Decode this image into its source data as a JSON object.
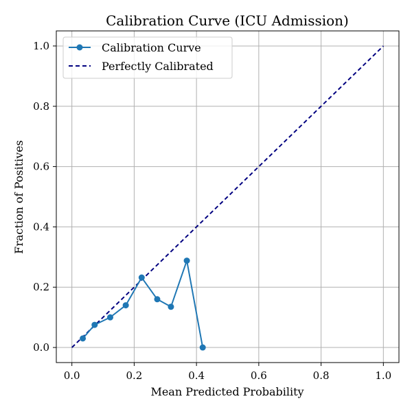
{
  "chart_data": {
    "type": "line",
    "title": "Calibration Curve (ICU Admission)",
    "xlabel": "Mean Predicted Probability",
    "ylabel": "Fraction of Positives",
    "xlim": [
      -0.05,
      1.05
    ],
    "ylim": [
      -0.05,
      1.05
    ],
    "xticks": [
      0.0,
      0.2,
      0.4,
      0.6,
      0.8,
      1.0
    ],
    "yticks": [
      0.0,
      0.2,
      0.4,
      0.6,
      0.8,
      1.0
    ],
    "grid": true,
    "legend_position": "top-left",
    "series": [
      {
        "name": "Calibration Curve",
        "style": "solid-with-markers",
        "color": "#1f77b4",
        "x": [
          0.035,
          0.073,
          0.123,
          0.173,
          0.224,
          0.274,
          0.318,
          0.369,
          0.42
        ],
        "y": [
          0.03,
          0.075,
          0.1,
          0.14,
          0.232,
          0.16,
          0.135,
          0.288,
          0.0
        ]
      },
      {
        "name": "Perfectly Calibrated",
        "style": "dashed",
        "color": "#000080",
        "x": [
          0.0,
          1.0
        ],
        "y": [
          0.0,
          1.0
        ]
      }
    ]
  }
}
